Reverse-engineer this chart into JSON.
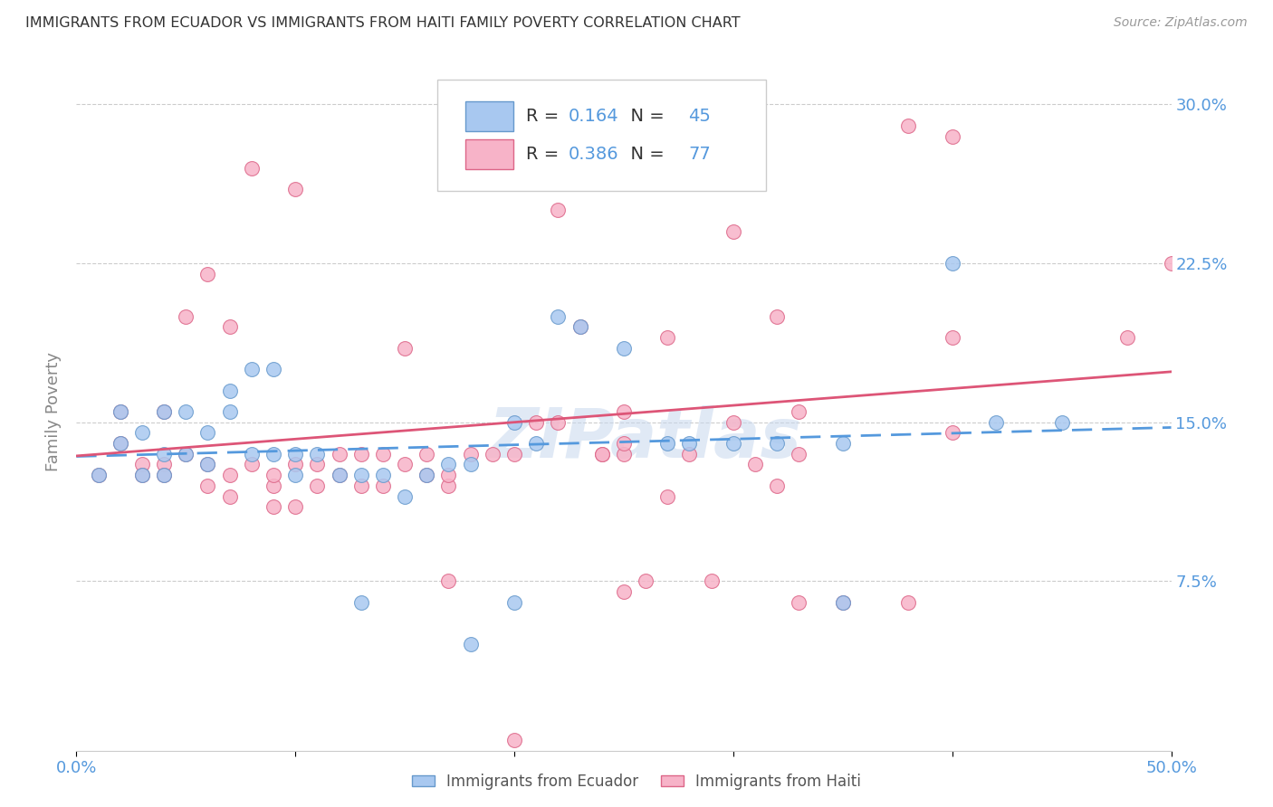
{
  "title": "IMMIGRANTS FROM ECUADOR VS IMMIGRANTS FROM HAITI FAMILY POVERTY CORRELATION CHART",
  "source": "Source: ZipAtlas.com",
  "ylabel": "Family Poverty",
  "xlim": [
    0.0,
    0.5
  ],
  "ylim": [
    -0.005,
    0.315
  ],
  "yticks": [
    0.075,
    0.15,
    0.225,
    0.3
  ],
  "ytick_labels": [
    "7.5%",
    "15.0%",
    "22.5%",
    "30.0%"
  ],
  "xticks": [
    0.0,
    0.1,
    0.2,
    0.3,
    0.4,
    0.5
  ],
  "xtick_labels": [
    "0.0%",
    "",
    "",
    "",
    "",
    "50.0%"
  ],
  "ecuador_R": 0.164,
  "ecuador_N": 45,
  "haiti_R": 0.386,
  "haiti_N": 77,
  "ecuador_color": "#a8c8f0",
  "haiti_color": "#f7b3c8",
  "ecuador_edge_color": "#6699cc",
  "haiti_edge_color": "#dd6688",
  "ecuador_line_color": "#5599dd",
  "haiti_line_color": "#dd5577",
  "ecuador_scatter": [
    [
      0.01,
      0.125
    ],
    [
      0.02,
      0.14
    ],
    [
      0.02,
      0.155
    ],
    [
      0.03,
      0.125
    ],
    [
      0.03,
      0.145
    ],
    [
      0.04,
      0.135
    ],
    [
      0.04,
      0.155
    ],
    [
      0.04,
      0.125
    ],
    [
      0.05,
      0.135
    ],
    [
      0.05,
      0.155
    ],
    [
      0.06,
      0.13
    ],
    [
      0.06,
      0.145
    ],
    [
      0.07,
      0.165
    ],
    [
      0.07,
      0.155
    ],
    [
      0.08,
      0.175
    ],
    [
      0.08,
      0.135
    ],
    [
      0.09,
      0.175
    ],
    [
      0.09,
      0.135
    ],
    [
      0.1,
      0.135
    ],
    [
      0.1,
      0.125
    ],
    [
      0.11,
      0.135
    ],
    [
      0.12,
      0.125
    ],
    [
      0.13,
      0.125
    ],
    [
      0.13,
      0.065
    ],
    [
      0.14,
      0.125
    ],
    [
      0.15,
      0.115
    ],
    [
      0.16,
      0.125
    ],
    [
      0.17,
      0.13
    ],
    [
      0.18,
      0.13
    ],
    [
      0.18,
      0.045
    ],
    [
      0.2,
      0.15
    ],
    [
      0.2,
      0.065
    ],
    [
      0.21,
      0.14
    ],
    [
      0.22,
      0.2
    ],
    [
      0.23,
      0.195
    ],
    [
      0.25,
      0.185
    ],
    [
      0.27,
      0.14
    ],
    [
      0.28,
      0.14
    ],
    [
      0.3,
      0.14
    ],
    [
      0.32,
      0.14
    ],
    [
      0.35,
      0.14
    ],
    [
      0.4,
      0.225
    ],
    [
      0.42,
      0.15
    ],
    [
      0.45,
      0.15
    ],
    [
      0.35,
      0.065
    ]
  ],
  "haiti_scatter": [
    [
      0.01,
      0.125
    ],
    [
      0.02,
      0.14
    ],
    [
      0.02,
      0.155
    ],
    [
      0.03,
      0.13
    ],
    [
      0.03,
      0.125
    ],
    [
      0.04,
      0.155
    ],
    [
      0.04,
      0.13
    ],
    [
      0.04,
      0.125
    ],
    [
      0.05,
      0.135
    ],
    [
      0.05,
      0.2
    ],
    [
      0.06,
      0.12
    ],
    [
      0.06,
      0.13
    ],
    [
      0.06,
      0.22
    ],
    [
      0.07,
      0.125
    ],
    [
      0.07,
      0.115
    ],
    [
      0.07,
      0.195
    ],
    [
      0.08,
      0.13
    ],
    [
      0.08,
      0.27
    ],
    [
      0.09,
      0.11
    ],
    [
      0.09,
      0.12
    ],
    [
      0.09,
      0.125
    ],
    [
      0.1,
      0.26
    ],
    [
      0.1,
      0.13
    ],
    [
      0.1,
      0.11
    ],
    [
      0.11,
      0.12
    ],
    [
      0.11,
      0.13
    ],
    [
      0.12,
      0.135
    ],
    [
      0.12,
      0.125
    ],
    [
      0.13,
      0.135
    ],
    [
      0.13,
      0.12
    ],
    [
      0.14,
      0.135
    ],
    [
      0.14,
      0.12
    ],
    [
      0.15,
      0.13
    ],
    [
      0.15,
      0.185
    ],
    [
      0.16,
      0.135
    ],
    [
      0.16,
      0.125
    ],
    [
      0.17,
      0.12
    ],
    [
      0.17,
      0.125
    ],
    [
      0.17,
      0.075
    ],
    [
      0.18,
      0.135
    ],
    [
      0.18,
      0.265
    ],
    [
      0.19,
      0.135
    ],
    [
      0.2,
      0.135
    ],
    [
      0.2,
      0.0
    ],
    [
      0.21,
      0.15
    ],
    [
      0.22,
      0.15
    ],
    [
      0.22,
      0.25
    ],
    [
      0.23,
      0.195
    ],
    [
      0.24,
      0.135
    ],
    [
      0.25,
      0.135
    ],
    [
      0.25,
      0.295
    ],
    [
      0.25,
      0.07
    ],
    [
      0.26,
      0.075
    ],
    [
      0.27,
      0.115
    ],
    [
      0.27,
      0.27
    ],
    [
      0.28,
      0.135
    ],
    [
      0.29,
      0.075
    ],
    [
      0.3,
      0.15
    ],
    [
      0.3,
      0.24
    ],
    [
      0.31,
      0.13
    ],
    [
      0.32,
      0.12
    ],
    [
      0.32,
      0.2
    ],
    [
      0.33,
      0.135
    ],
    [
      0.33,
      0.065
    ],
    [
      0.35,
      0.065
    ],
    [
      0.38,
      0.065
    ],
    [
      0.38,
      0.29
    ],
    [
      0.4,
      0.19
    ],
    [
      0.4,
      0.145
    ],
    [
      0.24,
      0.135
    ],
    [
      0.25,
      0.155
    ],
    [
      0.27,
      0.19
    ],
    [
      0.33,
      0.155
    ],
    [
      0.48,
      0.19
    ],
    [
      0.5,
      0.225
    ],
    [
      0.4,
      0.285
    ],
    [
      0.25,
      0.14
    ]
  ],
  "watermark": "ZIPatlas",
  "background_color": "#ffffff",
  "grid_color": "#cccccc",
  "title_color": "#333333",
  "axis_label_color": "#5599dd",
  "ylabel_color": "#888888"
}
